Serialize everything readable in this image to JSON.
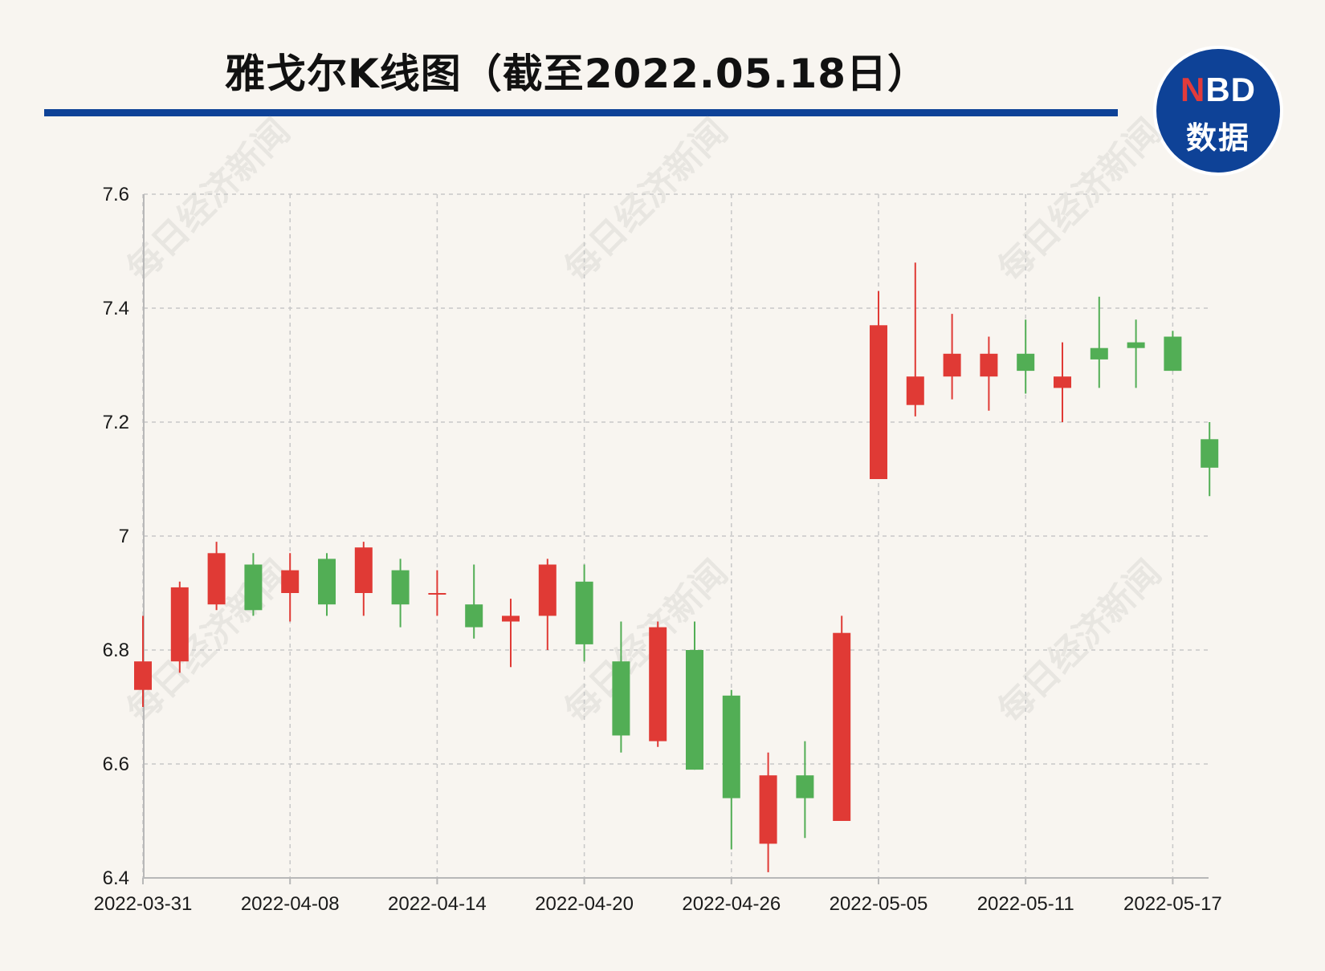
{
  "header": {
    "title": "雅戈尔K线图（截至2022.05.18日）"
  },
  "logo": {
    "brand_n": "N",
    "brand_rest": "BD",
    "subtitle": "数据"
  },
  "watermark": "每日经济新闻",
  "colors": {
    "up": "#e03a35",
    "down": "#52ae55",
    "rule": "#0e4297",
    "grid": "#c8c8c8",
    "background": "#f8f5f0"
  },
  "chart_data": {
    "type": "candlestick",
    "ylim": [
      6.4,
      7.6
    ],
    "yticks": [
      6.4,
      6.6,
      6.8,
      7,
      7.2,
      7.4,
      7.6
    ],
    "ytick_labels": [
      "6.4",
      "6.6",
      "6.8",
      "7",
      "7.2",
      "7.4",
      "7.6"
    ],
    "x_tick_labels": [
      "2022-03-31",
      "2022-04-08",
      "2022-04-14",
      "2022-04-20",
      "2022-04-26",
      "2022-05-05",
      "2022-05-11",
      "2022-05-17"
    ],
    "x_tick_index": [
      0,
      4,
      8,
      12,
      16,
      20,
      24,
      28
    ],
    "grid": true,
    "candles": [
      {
        "date": "2022-03-31",
        "open": 6.73,
        "close": 6.78,
        "high": 6.86,
        "low": 6.7
      },
      {
        "date": "2022-04-01",
        "open": 6.78,
        "close": 6.91,
        "high": 6.92,
        "low": 6.76
      },
      {
        "date": "2022-04-06",
        "open": 6.88,
        "close": 6.97,
        "high": 6.99,
        "low": 6.87
      },
      {
        "date": "2022-04-07",
        "open": 6.95,
        "close": 6.87,
        "high": 6.97,
        "low": 6.86
      },
      {
        "date": "2022-04-08",
        "open": 6.9,
        "close": 6.94,
        "high": 6.97,
        "low": 6.85
      },
      {
        "date": "2022-04-11",
        "open": 6.96,
        "close": 6.88,
        "high": 6.97,
        "low": 6.86
      },
      {
        "date": "2022-04-12",
        "open": 6.9,
        "close": 6.98,
        "high": 6.99,
        "low": 6.86
      },
      {
        "date": "2022-04-13",
        "open": 6.94,
        "close": 6.88,
        "high": 6.96,
        "low": 6.84
      },
      {
        "date": "2022-04-14",
        "open": 6.9,
        "close": 6.9,
        "high": 6.94,
        "low": 6.86
      },
      {
        "date": "2022-04-15",
        "open": 6.88,
        "close": 6.84,
        "high": 6.95,
        "low": 6.82
      },
      {
        "date": "2022-04-18",
        "open": 6.85,
        "close": 6.86,
        "high": 6.89,
        "low": 6.77
      },
      {
        "date": "2022-04-19",
        "open": 6.86,
        "close": 6.95,
        "high": 6.96,
        "low": 6.8
      },
      {
        "date": "2022-04-20",
        "open": 6.92,
        "close": 6.81,
        "high": 6.95,
        "low": 6.78
      },
      {
        "date": "2022-04-21",
        "open": 6.78,
        "close": 6.65,
        "high": 6.85,
        "low": 6.62
      },
      {
        "date": "2022-04-22",
        "open": 6.64,
        "close": 6.84,
        "high": 6.85,
        "low": 6.63
      },
      {
        "date": "2022-04-25",
        "open": 6.8,
        "close": 6.59,
        "high": 6.85,
        "low": 6.59
      },
      {
        "date": "2022-04-26",
        "open": 6.72,
        "close": 6.54,
        "high": 6.73,
        "low": 6.45
      },
      {
        "date": "2022-04-27",
        "open": 6.46,
        "close": 6.58,
        "high": 6.62,
        "low": 6.41
      },
      {
        "date": "2022-04-28",
        "open": 6.58,
        "close": 6.54,
        "high": 6.64,
        "low": 6.47
      },
      {
        "date": "2022-04-29",
        "open": 6.5,
        "close": 6.83,
        "high": 6.86,
        "low": 6.5
      },
      {
        "date": "2022-05-05",
        "open": 7.1,
        "close": 7.37,
        "high": 7.43,
        "low": 7.1
      },
      {
        "date": "2022-05-06",
        "open": 7.23,
        "close": 7.28,
        "high": 7.48,
        "low": 7.21
      },
      {
        "date": "2022-05-09",
        "open": 7.28,
        "close": 7.32,
        "high": 7.39,
        "low": 7.24
      },
      {
        "date": "2022-05-10",
        "open": 7.28,
        "close": 7.32,
        "high": 7.35,
        "low": 7.22
      },
      {
        "date": "2022-05-11",
        "open": 7.32,
        "close": 7.29,
        "high": 7.38,
        "low": 7.25
      },
      {
        "date": "2022-05-12",
        "open": 7.26,
        "close": 7.28,
        "high": 7.34,
        "low": 7.2
      },
      {
        "date": "2022-05-13",
        "open": 7.33,
        "close": 7.31,
        "high": 7.42,
        "low": 7.26
      },
      {
        "date": "2022-05-16",
        "open": 7.34,
        "close": 7.33,
        "high": 7.38,
        "low": 7.26
      },
      {
        "date": "2022-05-17",
        "open": 7.35,
        "close": 7.29,
        "high": 7.36,
        "low": 7.29
      },
      {
        "date": "2022-05-18",
        "open": 7.17,
        "close": 7.12,
        "high": 7.2,
        "low": 7.07
      }
    ]
  }
}
